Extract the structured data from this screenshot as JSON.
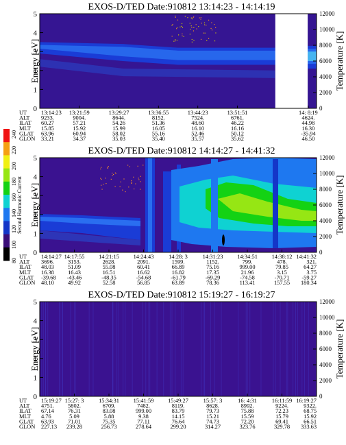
{
  "chart_data": [
    {
      "type": "heatmap",
      "title": "EXOS-D/TED   Date:910812   13:14:23 - 14:14:19",
      "ylabel": "Energy [eV]",
      "y2label": "Temperature [K]",
      "ylim": [
        0,
        5
      ],
      "y2lim": [
        0,
        12000
      ],
      "yticks": [
        "0",
        "1",
        "2",
        "3",
        "4",
        "5"
      ],
      "y2ticks": [
        "0",
        "2000",
        "4000",
        "6000",
        "8000",
        "10000",
        "12000"
      ],
      "data_gap": [
        0.851,
        0.968
      ],
      "band": [
        {
          "x": 0.0,
          "lo": 2.9,
          "hi": 3.5
        },
        {
          "x": 0.3,
          "lo": 2.5,
          "hi": 3.4
        },
        {
          "x": 0.5,
          "lo": 2.3,
          "hi": 3.2
        },
        {
          "x": 0.85,
          "lo": 2.3,
          "hi": 3.2
        },
        {
          "x": 0.97,
          "lo": 2.1,
          "hi": 3.3
        },
        {
          "x": 1.0,
          "lo": 2.1,
          "hi": 3.3
        }
      ],
      "orbit_table": {
        "row_labels": [
          "UT",
          "ALT",
          "ILAT",
          "MLT",
          "GLAT",
          "GLON"
        ],
        "columns": [
          [
            "13:14:23",
            "9233.",
            "60.27",
            "15.85",
            "63.96",
            "33.21"
          ],
          [
            "13:21:59",
            "9004.",
            "57.21",
            "15.92",
            "60.94",
            "34.37"
          ],
          [
            "13:29:27",
            "8644.",
            "54.26",
            "15.99",
            "58.02",
            "35.03"
          ],
          [
            "13:36:55",
            "8152.",
            "51.36",
            "16.05",
            "55.16",
            "35.40"
          ],
          [
            "13:44:23",
            "7524.",
            "48.60",
            "16.10",
            "52.46",
            "35.57"
          ],
          [
            "13:51:51",
            "6761.",
            "46.22",
            "16.16",
            "50.12",
            "35.62"
          ],
          [
            "14: 8:19",
            "4624.",
            "44.98",
            "16.30",
            "-35.94",
            "46.50"
          ]
        ]
      }
    },
    {
      "type": "heatmap",
      "title": "EXOS-D/TED   Date:910812   14:14:27 - 14:41:32",
      "ylabel": "Energy [eV]",
      "y2label": "Temperature [K]",
      "ylim": [
        0,
        5
      ],
      "y2lim": [
        0,
        12000
      ],
      "yticks": [
        "0",
        "1",
        "2",
        "3",
        "4",
        "5"
      ],
      "y2ticks": [
        "0",
        "2000",
        "4000",
        "6000",
        "8000",
        "10000",
        "12000"
      ],
      "colorbar": {
        "label": "Second Harmonic Current",
        "ticks": [
          "80",
          "100",
          "120",
          "140",
          "160",
          "180",
          "200",
          "220",
          "240"
        ],
        "colors": [
          "#000000",
          "#3a0d78",
          "#1436c8",
          "#1e78f0",
          "#0fd2d2",
          "#14d214",
          "#96e614",
          "#f0f014",
          "#f5a014",
          "#f01414"
        ]
      },
      "orbit_table": {
        "row_labels": [
          "UT",
          "ALT",
          "ILAT",
          "MLT",
          "GLAT",
          "GLON"
        ],
        "columns": [
          [
            "14:14:27",
            "3696.",
            "48.03",
            "16.38",
            "-39.68",
            "48.10"
          ],
          [
            "14:17:55",
            "3153.",
            "51.09",
            "16.43",
            "-43.46",
            "49.92"
          ],
          [
            "14:21:15",
            "2628.",
            "55.08",
            "16.51",
            "-48.35",
            "52.58"
          ],
          [
            "14:24:43",
            "2091.",
            "60.41",
            "16.62",
            "-54.68",
            "56.85"
          ],
          [
            "14:28: 3",
            "1599.",
            "66.89",
            "16.82",
            "-61.79",
            "63.89"
          ],
          [
            "14:31:23",
            "1152.",
            "75.16",
            "17.35",
            "-69.29",
            "78.36"
          ],
          [
            "14:34:51",
            "799.",
            "999.00",
            "21.96",
            "-74.58",
            "113.41"
          ],
          [
            "14:38:12",
            "478.",
            "79.85",
            "3.15",
            "-70.71",
            "157.55"
          ],
          [
            "14:41:32",
            "321.",
            "64.27",
            "3.75",
            "-59.27",
            "180.34"
          ]
        ]
      }
    },
    {
      "type": "heatmap",
      "title": "EXOS-D/TED   Date:910812   15:19:27 - 16:19:27",
      "ylabel": "Energy [eV]",
      "y2label": "Temperature [K]",
      "ylim": [
        0,
        5
      ],
      "y2lim": [
        0,
        12000
      ],
      "yticks": [
        "0",
        "1",
        "2",
        "3",
        "4",
        "5"
      ],
      "y2ticks": [
        "0",
        "2000",
        "4000",
        "6000",
        "8000",
        "10000",
        "12000"
      ],
      "orbit_table": {
        "row_labels": [
          "UT",
          "ALT",
          "ILAT",
          "MLT",
          "GLAT",
          "GLON"
        ],
        "columns": [
          [
            "15:19:27",
            "4751.",
            "67.14",
            "4.76",
            "63.93",
            "227.13"
          ],
          [
            "15:27: 3",
            "5802.",
            "76.31",
            "5.09",
            "71.01",
            "239.28"
          ],
          [
            "15:34:31",
            "6709.",
            "83.08",
            "5.88",
            "75.35",
            "256.73"
          ],
          [
            "15:41:59",
            "7482.",
            "999.00",
            "9.38",
            "77.11",
            "278.64"
          ],
          [
            "15:49:27",
            "8119.",
            "83.79",
            "14.15",
            "76.64",
            "299.20"
          ],
          [
            "15:57: 3",
            "8628.",
            "79.73",
            "15.21",
            "74.73",
            "314.27"
          ],
          [
            "16: 4:31",
            "8992.",
            "75.88",
            "15.59",
            "72.20",
            "323.76"
          ],
          [
            "16:11:59",
            "9224.",
            "72.23",
            "15.79",
            "69.41",
            "329.78"
          ],
          [
            "16:19:27",
            "9322.",
            "68.75",
            "15.92",
            "66.51",
            "333.63"
          ]
        ]
      }
    }
  ]
}
